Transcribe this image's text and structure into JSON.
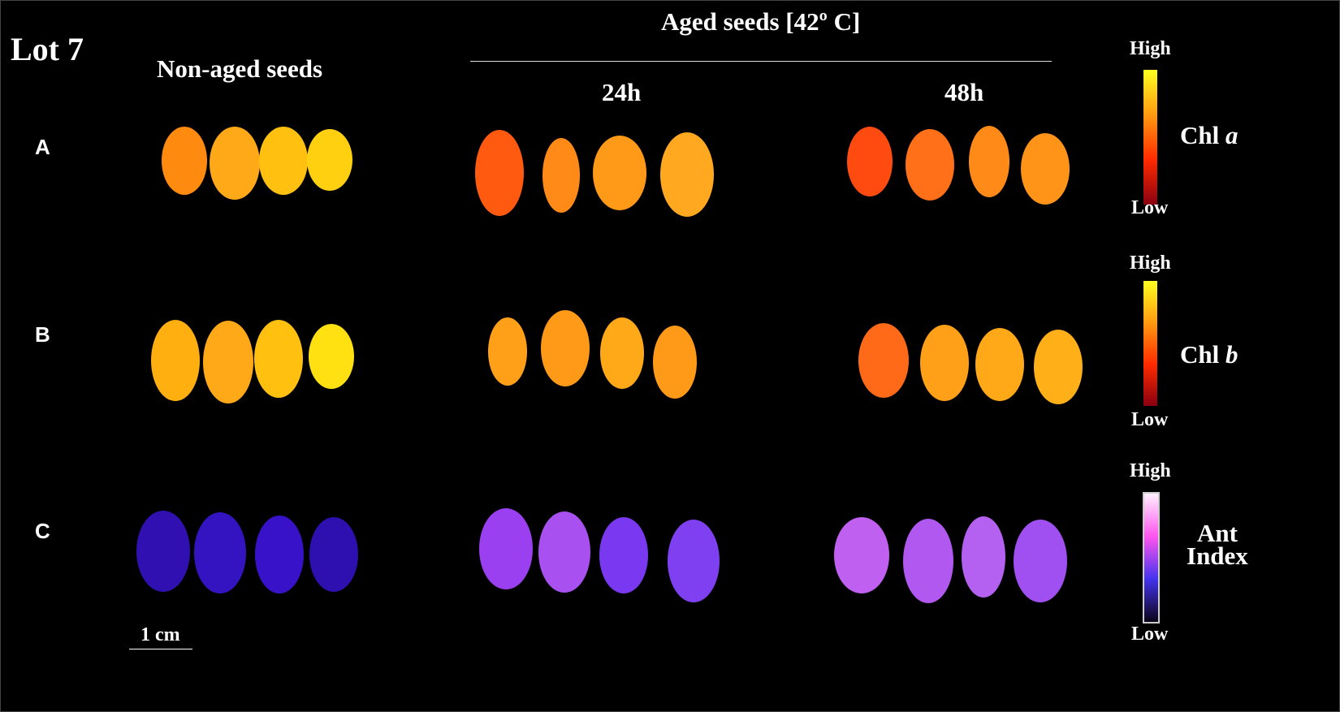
{
  "lot_label": "Lot 7",
  "columns": {
    "non_aged": "Non-aged seeds",
    "aged_header": "Aged seeds [42º C]",
    "h24": "24h",
    "h48": "48h"
  },
  "rows": [
    "A",
    "B",
    "C"
  ],
  "colorbars": [
    {
      "high": "High",
      "low": "Low",
      "label": "Chl ",
      "label_italic": "a",
      "colors": [
        "#ffff20",
        "#ff9a10",
        "#ff2a00",
        "#8a0010"
      ]
    },
    {
      "high": "High",
      "low": "Low",
      "label": "Chl ",
      "label_italic": "b",
      "colors": [
        "#ffff20",
        "#ff9a10",
        "#ff2a00",
        "#8a0010"
      ]
    },
    {
      "high": "High",
      "low": "Low",
      "label": "Ant",
      "label2": "Index",
      "colors": [
        "#fff0ff",
        "#ff55ee",
        "#4433ee",
        "#0a0418"
      ]
    }
  ],
  "scale_bar": "1 cm"
}
